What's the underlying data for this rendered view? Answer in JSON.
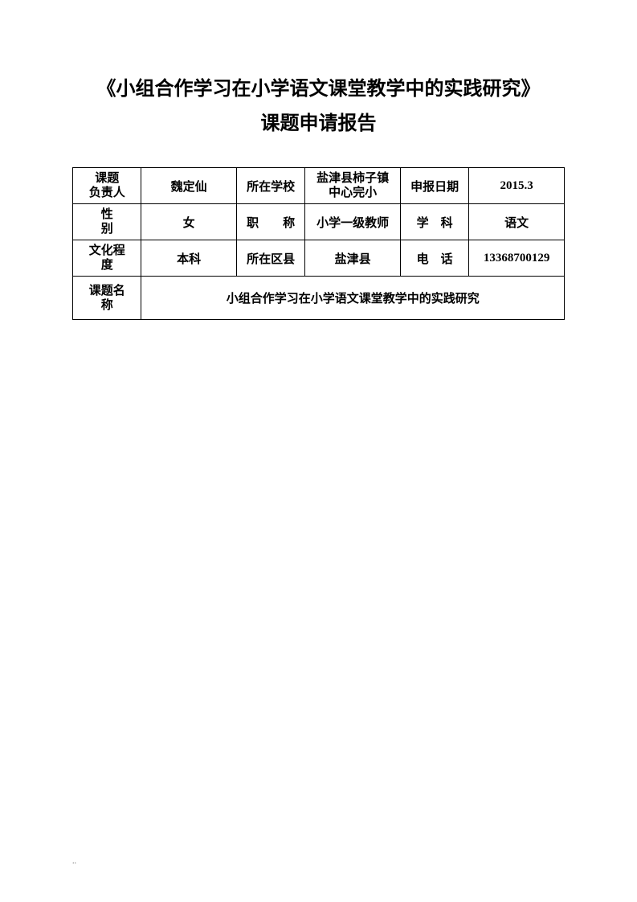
{
  "title": {
    "line1": "《小组合作学习在小学语文课堂教学中的实践研究》",
    "line2": "课题申请报告"
  },
  "table": {
    "row1": {
      "label1": "课题\n负责人",
      "value1": "魏定仙",
      "label2": "所在学校",
      "value2": "盐津县柿子镇\n中心完小",
      "label3": "申报日期",
      "value3": "2015.3"
    },
    "row2": {
      "label1": "性　　别",
      "value1": "女",
      "label2": "职　　称",
      "value2": "小学一级教师",
      "label3": "学　科",
      "value3": "语文"
    },
    "row3": {
      "label1": "文化程\n度",
      "value1": "本科",
      "label2": "所在区县",
      "value2": "盐津县",
      "label3": "电　话",
      "value3": "13368700129"
    },
    "row4": {
      "label1": "课题名\n称",
      "merged": "小组合作学习在小学语文课堂教学中的实践研究"
    }
  },
  "footer": ".."
}
